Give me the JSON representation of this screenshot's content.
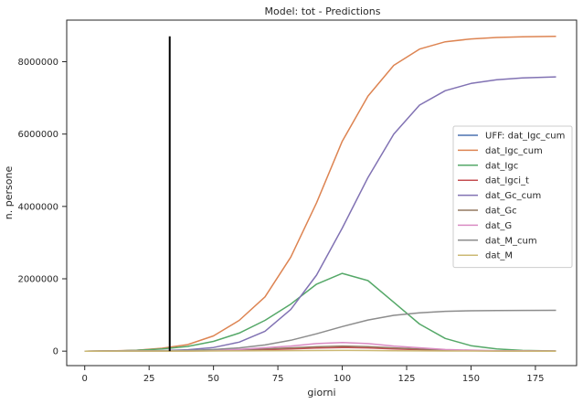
{
  "chart_data": {
    "type": "line",
    "title": "Model: tot - Predictions",
    "xlabel": "giorni",
    "ylabel": "n. persone",
    "xlim": [
      -7,
      191
    ],
    "ylim": [
      -400000,
      9150000
    ],
    "xticks": [
      0,
      25,
      50,
      75,
      100,
      125,
      150,
      175
    ],
    "yticks": [
      0,
      2000000,
      4000000,
      6000000,
      8000000
    ],
    "xtick_labels": [
      "0",
      "25",
      "50",
      "75",
      "100",
      "125",
      "150",
      "175"
    ],
    "ytick_labels": [
      "0",
      "2000000",
      "4000000",
      "6000000",
      "8000000"
    ],
    "grid": false,
    "legend_position": "center-right",
    "vline": {
      "x": 33,
      "y_from": 0,
      "y_to": 8700000,
      "color": "#000000"
    },
    "series": [
      {
        "name": "UFF: dat_Igc_cum",
        "color": "#4c72b0",
        "x": [
          0,
          5,
          10,
          15,
          20,
          25,
          30,
          33
        ],
        "y": [
          0,
          2000,
          6000,
          12000,
          25000,
          45000,
          70000,
          90000
        ]
      },
      {
        "name": "dat_Igc_cum",
        "color": "#dd8452",
        "x": [
          0,
          10,
          20,
          30,
          40,
          50,
          60,
          70,
          80,
          90,
          100,
          110,
          120,
          130,
          140,
          150,
          160,
          170,
          183
        ],
        "y": [
          0,
          8000,
          25000,
          80000,
          180000,
          420000,
          850000,
          1500000,
          2600000,
          4100000,
          5800000,
          7050000,
          7900000,
          8350000,
          8550000,
          8630000,
          8670000,
          8690000,
          8700000
        ]
      },
      {
        "name": "dat_Igc",
        "color": "#55a868",
        "x": [
          0,
          10,
          20,
          30,
          40,
          50,
          60,
          70,
          80,
          90,
          100,
          110,
          120,
          130,
          140,
          150,
          160,
          170,
          183
        ],
        "y": [
          0,
          5000,
          20000,
          60000,
          130000,
          270000,
          500000,
          850000,
          1300000,
          1850000,
          2150000,
          1950000,
          1350000,
          750000,
          350000,
          150000,
          60000,
          20000,
          5000
        ]
      },
      {
        "name": "dat_Igci_t",
        "color": "#c44e52",
        "x": [
          0,
          20,
          40,
          60,
          80,
          90,
          100,
          110,
          120,
          140,
          160,
          183
        ],
        "y": [
          0,
          1000,
          5000,
          20000,
          60000,
          85000,
          100000,
          90000,
          60000,
          20000,
          5000,
          1000
        ]
      },
      {
        "name": "dat_Gc_cum",
        "color": "#8172b3",
        "x": [
          0,
          10,
          20,
          30,
          40,
          50,
          60,
          70,
          80,
          90,
          100,
          110,
          120,
          130,
          140,
          150,
          160,
          170,
          183
        ],
        "y": [
          0,
          1000,
          5000,
          15000,
          40000,
          100000,
          250000,
          550000,
          1150000,
          2100000,
          3400000,
          4800000,
          6000000,
          6800000,
          7200000,
          7400000,
          7500000,
          7550000,
          7580000
        ]
      },
      {
        "name": "dat_Gc",
        "color": "#937860",
        "x": [
          0,
          20,
          40,
          60,
          80,
          90,
          100,
          110,
          120,
          140,
          160,
          183
        ],
        "y": [
          0,
          2000,
          10000,
          35000,
          90000,
          120000,
          140000,
          125000,
          90000,
          30000,
          8000,
          1000
        ]
      },
      {
        "name": "dat_G",
        "color": "#da8bc3",
        "x": [
          0,
          20,
          40,
          60,
          80,
          90,
          100,
          110,
          120,
          140,
          160,
          183
        ],
        "y": [
          0,
          3000,
          15000,
          50000,
          140000,
          210000,
          240000,
          210000,
          140000,
          45000,
          10000,
          1000
        ]
      },
      {
        "name": "dat_M_cum",
        "color": "#8c8c8c",
        "x": [
          0,
          10,
          20,
          30,
          40,
          50,
          60,
          70,
          80,
          90,
          100,
          110,
          120,
          130,
          140,
          150,
          160,
          170,
          183
        ],
        "y": [
          0,
          1000,
          3000,
          8000,
          20000,
          45000,
          90000,
          170000,
          300000,
          480000,
          680000,
          860000,
          990000,
          1060000,
          1100000,
          1115000,
          1120000,
          1125000,
          1128000
        ]
      },
      {
        "name": "dat_M",
        "color": "#ccb974",
        "x": [
          0,
          20,
          40,
          60,
          80,
          90,
          100,
          110,
          120,
          140,
          160,
          183
        ],
        "y": [
          0,
          500,
          2000,
          6000,
          14000,
          18000,
          20000,
          18000,
          12000,
          4000,
          1000,
          0
        ]
      }
    ]
  }
}
